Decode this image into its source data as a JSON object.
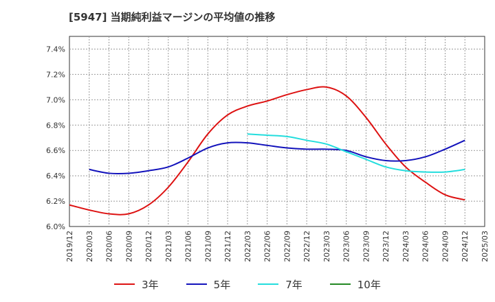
{
  "chart_data": {
    "type": "line",
    "title": "[5947]  当期純利益マージンの平均値の推移",
    "xlabel": "",
    "ylabel": "",
    "ylim": [
      6.0,
      7.5
    ],
    "y_ticks": [
      "6.0%",
      "6.2%",
      "6.4%",
      "6.6%",
      "6.8%",
      "7.0%",
      "7.2%",
      "7.4%"
    ],
    "y_tick_values": [
      6.0,
      6.2,
      6.4,
      6.6,
      6.8,
      7.0,
      7.2,
      7.4
    ],
    "x_ticks": [
      "2019/12",
      "2020/03",
      "2020/06",
      "2020/09",
      "2020/12",
      "2021/03",
      "2021/06",
      "2021/09",
      "2021/12",
      "2022/03",
      "2022/06",
      "2022/09",
      "2022/12",
      "2023/03",
      "2023/06",
      "2023/09",
      "2023/12",
      "2024/03",
      "2024/06",
      "2024/09",
      "2024/12",
      "2025/03"
    ],
    "grid": true,
    "legend_position": "bottom",
    "series": [
      {
        "name": "3年",
        "color": "#dd1111",
        "points": [
          [
            "2019/12",
            6.17
          ],
          [
            "2020/03",
            6.13
          ],
          [
            "2020/06",
            6.1
          ],
          [
            "2020/09",
            6.1
          ],
          [
            "2020/12",
            6.17
          ],
          [
            "2021/03",
            6.31
          ],
          [
            "2021/06",
            6.51
          ],
          [
            "2021/09",
            6.73
          ],
          [
            "2021/12",
            6.88
          ],
          [
            "2022/03",
            6.95
          ],
          [
            "2022/06",
            6.99
          ],
          [
            "2022/09",
            7.04
          ],
          [
            "2022/12",
            7.08
          ],
          [
            "2023/03",
            7.1
          ],
          [
            "2023/06",
            7.03
          ],
          [
            "2023/09",
            6.86
          ],
          [
            "2023/12",
            6.65
          ],
          [
            "2024/03",
            6.47
          ],
          [
            "2024/06",
            6.35
          ],
          [
            "2024/09",
            6.25
          ],
          [
            "2024/12",
            6.21
          ]
        ]
      },
      {
        "name": "5年",
        "color": "#1111bb",
        "points": [
          [
            "2020/03",
            6.45
          ],
          [
            "2020/06",
            6.42
          ],
          [
            "2020/09",
            6.42
          ],
          [
            "2020/12",
            6.44
          ],
          [
            "2021/03",
            6.47
          ],
          [
            "2021/06",
            6.54
          ],
          [
            "2021/09",
            6.62
          ],
          [
            "2021/12",
            6.66
          ],
          [
            "2022/03",
            6.66
          ],
          [
            "2022/06",
            6.64
          ],
          [
            "2022/09",
            6.62
          ],
          [
            "2022/12",
            6.61
          ],
          [
            "2023/03",
            6.61
          ],
          [
            "2023/06",
            6.6
          ],
          [
            "2023/09",
            6.55
          ],
          [
            "2023/12",
            6.52
          ],
          [
            "2024/03",
            6.52
          ],
          [
            "2024/06",
            6.55
          ],
          [
            "2024/09",
            6.61
          ],
          [
            "2024/12",
            6.68
          ]
        ]
      },
      {
        "name": "7年",
        "color": "#22dddd",
        "points": [
          [
            "2022/03",
            6.73
          ],
          [
            "2022/06",
            6.72
          ],
          [
            "2022/09",
            6.71
          ],
          [
            "2022/12",
            6.68
          ],
          [
            "2023/03",
            6.65
          ],
          [
            "2023/06",
            6.59
          ],
          [
            "2023/09",
            6.53
          ],
          [
            "2023/12",
            6.47
          ],
          [
            "2024/03",
            6.44
          ],
          [
            "2024/06",
            6.43
          ],
          [
            "2024/09",
            6.43
          ],
          [
            "2024/12",
            6.45
          ]
        ]
      },
      {
        "name": "10年",
        "color": "#228822",
        "points": []
      }
    ]
  }
}
